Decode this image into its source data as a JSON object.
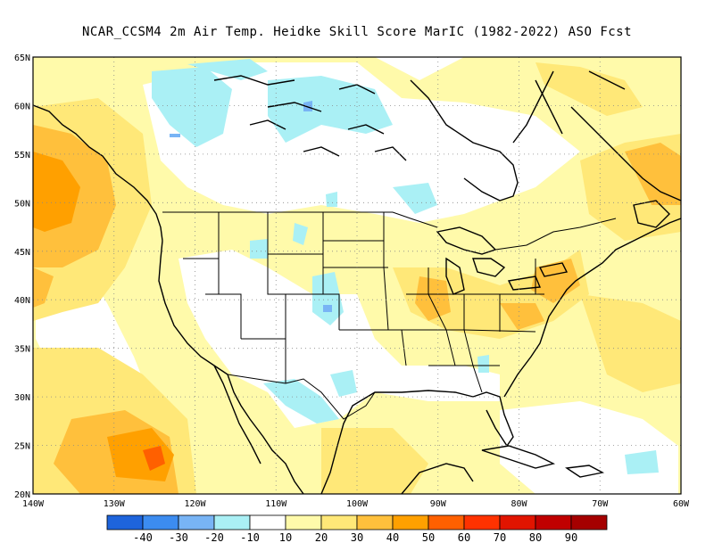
{
  "title": "NCAR_CCSM4  2m Air Temp. Heidke Skill Score MarIC (1982-2022) ASO Fcst",
  "map": {
    "lat_labels": [
      "65N",
      "60N",
      "55N",
      "50N",
      "45N",
      "40N",
      "35N",
      "30N",
      "25N",
      "20N"
    ],
    "lon_labels": [
      "140W",
      "130W",
      "120W",
      "110W",
      "100W",
      "90W",
      "80W",
      "70W",
      "60W"
    ],
    "extent": {
      "lon": [
        -140,
        -60
      ],
      "lat": [
        20,
        65
      ]
    },
    "gridlines": "dotted"
  },
  "colorbar": {
    "labels": [
      "-40",
      "-30",
      "-20",
      "-10",
      "10",
      "20",
      "30",
      "40",
      "50",
      "60",
      "70",
      "80",
      "90"
    ],
    "colors": [
      "#1e64dc",
      "#3c8cf0",
      "#78b4f5",
      "#aaf0f5",
      "#ffffff",
      "#fffaaa",
      "#ffe878",
      "#ffc03c",
      "#ffa000",
      "#ff6000",
      "#ff3200",
      "#e11400",
      "#c00000",
      "#a50000"
    ]
  },
  "colors": {
    "land_outline": "#000000",
    "ocean_bg": "#ffffff"
  }
}
